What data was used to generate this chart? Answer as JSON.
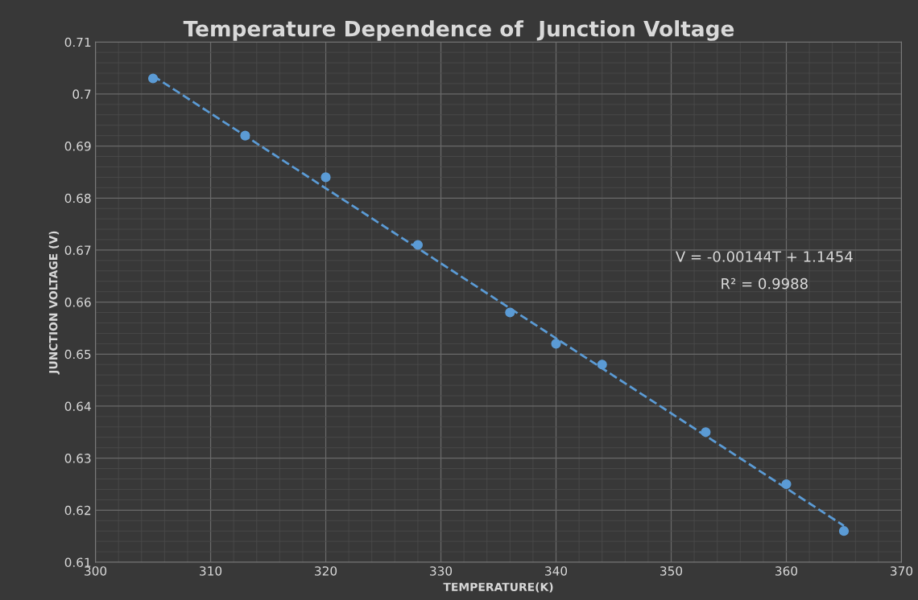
{
  "chart_data": {
    "type": "scatter",
    "title": "Temperature Dependence of  Junction Voltage",
    "xlabel": "TEMPERATURE(K)",
    "ylabel": "JUNCTION VOLTAGE (V)",
    "xlim": [
      300,
      370
    ],
    "xticks": [
      300,
      310,
      320,
      330,
      340,
      350,
      360,
      370
    ],
    "ylim": [
      0.61,
      0.71
    ],
    "yticks": [
      0.61,
      0.62,
      0.63,
      0.64,
      0.65,
      0.66,
      0.67,
      0.68,
      0.69,
      0.7,
      0.71
    ],
    "grid": true,
    "legend": false,
    "series": [
      {
        "marker": "circle",
        "color": "#5b9bd5",
        "x": [
          305,
          313,
          320,
          328,
          336,
          340,
          344,
          353,
          360,
          365
        ],
        "values": [
          0.703,
          0.692,
          0.684,
          0.671,
          0.658,
          0.652,
          0.648,
          0.635,
          0.625,
          0.616
        ]
      },
      {
        "type": "line",
        "line_style": "dashed",
        "marker": "none",
        "color": "#5b9bd5",
        "x": [
          305,
          365
        ],
        "values": [
          0.7035,
          0.617
        ]
      }
    ],
    "annotations": [
      "V = -0.00144T + 1.1454",
      "R² = 0.9988"
    ]
  }
}
